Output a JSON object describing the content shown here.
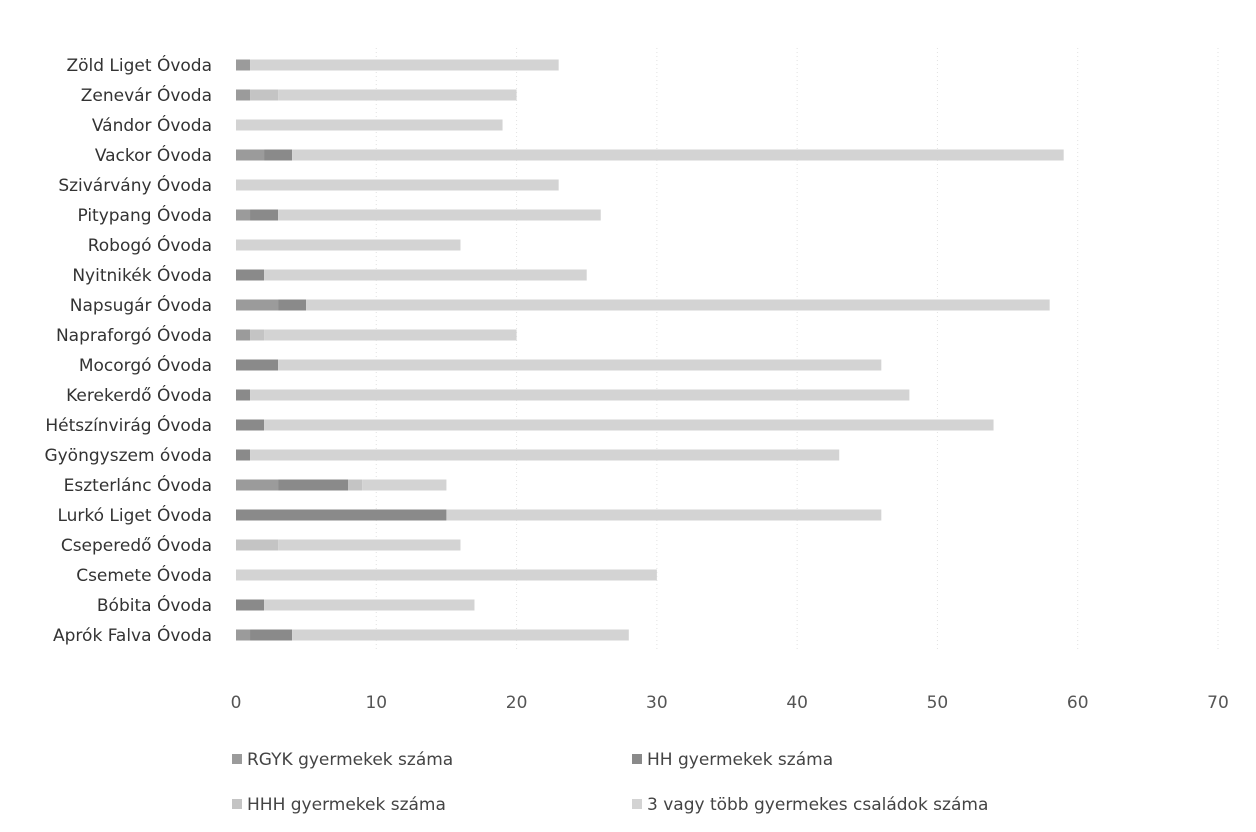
{
  "chart_data": {
    "type": "bar",
    "orientation": "horizontal",
    "stacked": true,
    "categories": [
      "Zöld Liget Óvoda",
      "Zenevár Óvoda",
      "Vándor Óvoda",
      "Vackor Óvoda",
      "Szivárvány Óvoda",
      "Pitypang Óvoda",
      "Robogó Óvoda",
      "Nyitnikék Óvoda",
      "Napsugár Óvoda",
      "Napraforgó Óvoda",
      "Mocorgó Óvoda",
      "Kerekerdő Óvoda",
      "Hétszínvirág Óvoda",
      "Gyöngyszem óvoda",
      "Eszterlánc Óvoda",
      "Lurkó Liget Óvoda",
      "Cseperedő Óvoda",
      "Csemete  Óvoda",
      "Bóbita  Óvoda",
      "Aprók Falva Óvoda"
    ],
    "series": [
      {
        "name": "RGYK gyermekek száma",
        "color": "#9b9b9b",
        "values": [
          1,
          1,
          0,
          2,
          0,
          1,
          0,
          0,
          3,
          1,
          0,
          0,
          0,
          0,
          3,
          0,
          0,
          0,
          0,
          1
        ]
      },
      {
        "name": "HH gyermekek száma",
        "color": "#8a8a8a",
        "values": [
          0,
          0,
          0,
          2,
          0,
          2,
          0,
          2,
          2,
          0,
          3,
          1,
          2,
          1,
          5,
          15,
          0,
          0,
          2,
          3
        ]
      },
      {
        "name": "HHH gyermekek száma",
        "color": "#c4c4c4",
        "values": [
          0,
          2,
          0,
          0,
          0,
          0,
          0,
          0,
          0,
          1,
          0,
          0,
          0,
          0,
          1,
          0,
          3,
          0,
          0,
          0
        ]
      },
      {
        "name": "3 vagy több gyermekes családok száma",
        "color": "#d3d3d3",
        "values": [
          22,
          17,
          19,
          55,
          23,
          23,
          16,
          23,
          53,
          18,
          43,
          47,
          52,
          42,
          6,
          31,
          13,
          30,
          15,
          24
        ]
      }
    ],
    "xlim": [
      0,
      70
    ],
    "xticks": [
      "0",
      "10",
      "20",
      "30",
      "40",
      "50",
      "60",
      "70"
    ],
    "grid": "vertical",
    "legend_position": "bottom"
  }
}
